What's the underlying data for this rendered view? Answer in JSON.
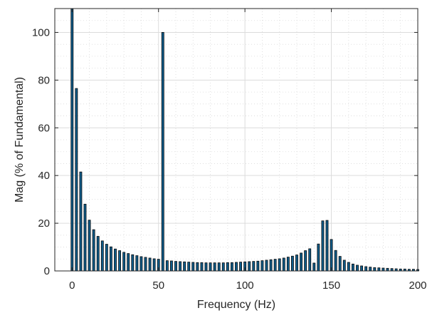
{
  "chart_data": {
    "type": "bar",
    "title": "",
    "xlabel": "Frequency (Hz)",
    "ylabel": "Mag (% of Fundamental)",
    "xlim": [
      -10,
      200
    ],
    "ylim": [
      0,
      110
    ],
    "xticks": [
      0,
      50,
      100,
      150,
      200
    ],
    "yticks": [
      0,
      20,
      40,
      60,
      80,
      100
    ],
    "grid": "major and minor",
    "bar_color": "#0f5d8c",
    "bar_edge_color": "#0a0a0a",
    "x": [
      0,
      2.5,
      5,
      7.5,
      10,
      12.5,
      15,
      17.5,
      20,
      22.5,
      25,
      27.5,
      30,
      32.5,
      35,
      37.5,
      40,
      42.5,
      45,
      47.5,
      50,
      52.5,
      55,
      57.5,
      60,
      62.5,
      65,
      67.5,
      70,
      72.5,
      75,
      77.5,
      80,
      82.5,
      85,
      87.5,
      90,
      92.5,
      95,
      97.5,
      100,
      102.5,
      105,
      107.5,
      110,
      112.5,
      115,
      117.5,
      120,
      122.5,
      125,
      127.5,
      130,
      132.5,
      135,
      137.5,
      140,
      142.5,
      145,
      147.5,
      150,
      152.5,
      155,
      157.5,
      160,
      162.5,
      165,
      167.5,
      170,
      172.5,
      175,
      177.5,
      180,
      182.5,
      185,
      187.5,
      190,
      192.5,
      195,
      197.5,
      200
    ],
    "values": [
      110,
      76.5,
      41.5,
      28,
      21.3,
      17.3,
      14.5,
      12.6,
      11.2,
      10.1,
      9.2,
      8.5,
      7.8,
      7.3,
      6.8,
      6.4,
      6,
      5.7,
      5.4,
      5.1,
      4.9,
      100,
      4.3,
      4.2,
      4,
      3.9,
      3.8,
      3.7,
      3.6,
      3.5,
      3.5,
      3.4,
      3.4,
      3.4,
      3.4,
      3.4,
      3.5,
      3.5,
      3.6,
      3.7,
      3.8,
      3.9,
      4,
      4.1,
      4.3,
      4.5,
      4.7,
      4.9,
      5.1,
      5.4,
      5.8,
      6.2,
      6.7,
      7.5,
      8.5,
      9.3,
      3.3,
      11.3,
      21,
      21.2,
      13.2,
      8.6,
      6.1,
      4.5,
      3.6,
      2.9,
      2.4,
      2.1,
      1.8,
      1.6,
      1.4,
      1.3,
      1.2,
      1.1,
      1,
      0.9,
      0.8,
      0.8,
      0.7,
      0.7,
      0.6
    ]
  }
}
